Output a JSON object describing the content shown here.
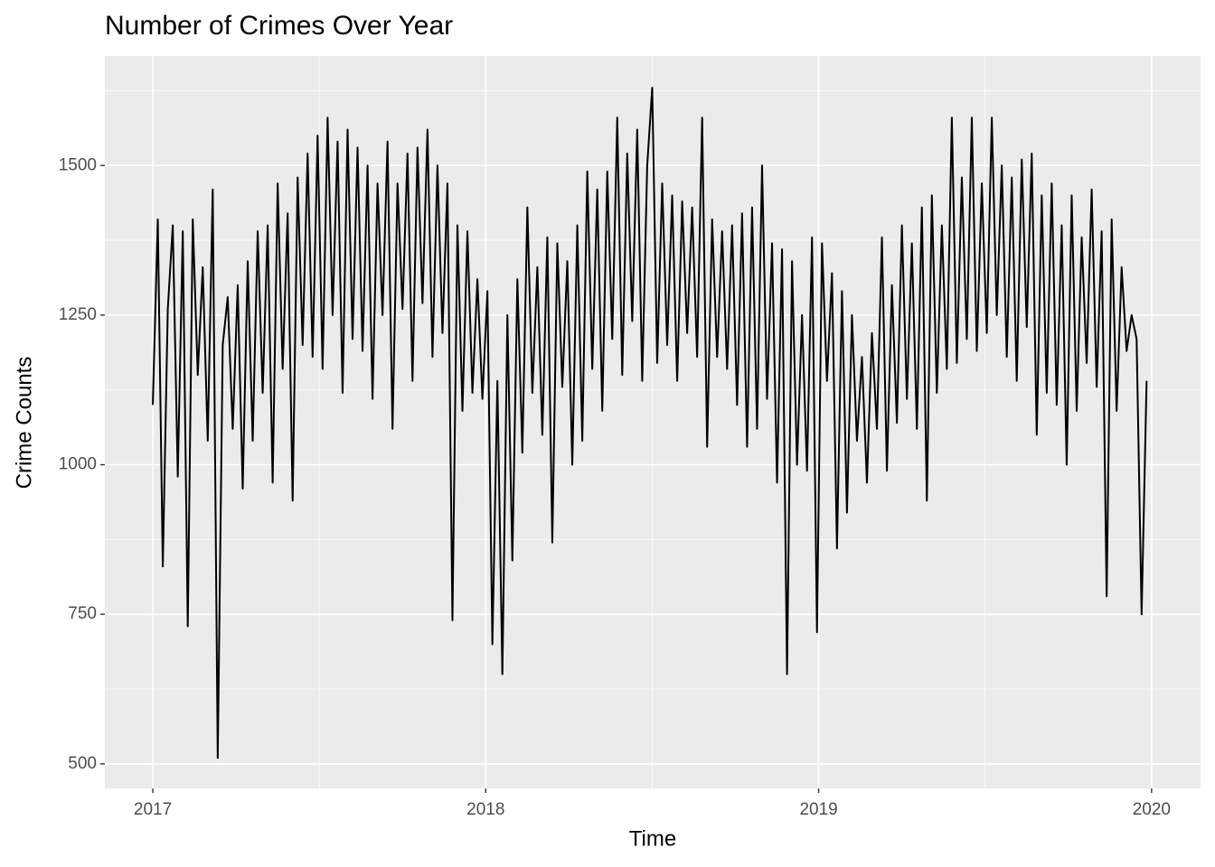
{
  "chart_data": {
    "type": "line",
    "title": "Number of Crimes Over Year",
    "xlabel": "Time",
    "ylabel": "Crime Counts",
    "x": [
      2017,
      2017.015,
      2017.03,
      2017.045,
      2017.06,
      2017.075,
      2017.09,
      2017.105,
      2017.12,
      2017.135,
      2017.15,
      2017.165,
      2017.18,
      2017.195,
      2017.21,
      2017.225,
      2017.24,
      2017.255,
      2017.27,
      2017.285,
      2017.3,
      2017.315,
      2017.33,
      2017.345,
      2017.36,
      2017.375,
      2017.39,
      2017.405,
      2017.42,
      2017.435,
      2017.45,
      2017.465,
      2017.48,
      2017.495,
      2017.51,
      2017.525,
      2017.54,
      2017.555,
      2017.57,
      2017.585,
      2017.6,
      2017.615,
      2017.63,
      2017.645,
      2017.66,
      2017.675,
      2017.69,
      2017.705,
      2017.72,
      2017.735,
      2017.75,
      2017.765,
      2017.78,
      2017.795,
      2017.81,
      2017.825,
      2017.84,
      2017.855,
      2017.87,
      2017.885,
      2017.9,
      2017.915,
      2017.93,
      2017.945,
      2017.96,
      2017.975,
      2017.99,
      2018.005,
      2018.02,
      2018.035,
      2018.05,
      2018.065,
      2018.08,
      2018.095,
      2018.11,
      2018.125,
      2018.14,
      2018.155,
      2018.17,
      2018.185,
      2018.2,
      2018.215,
      2018.23,
      2018.245,
      2018.26,
      2018.275,
      2018.29,
      2018.305,
      2018.32,
      2018.335,
      2018.35,
      2018.365,
      2018.38,
      2018.395,
      2018.41,
      2018.425,
      2018.44,
      2018.455,
      2018.47,
      2018.485,
      2018.5,
      2018.515,
      2018.53,
      2018.545,
      2018.56,
      2018.575,
      2018.59,
      2018.605,
      2018.62,
      2018.635,
      2018.65,
      2018.665,
      2018.68,
      2018.695,
      2018.71,
      2018.725,
      2018.74,
      2018.755,
      2018.77,
      2018.785,
      2018.8,
      2018.815,
      2018.83,
      2018.845,
      2018.86,
      2018.875,
      2018.89,
      2018.905,
      2018.92,
      2018.935,
      2018.95,
      2018.965,
      2018.98,
      2018.995,
      2019.01,
      2019.025,
      2019.04,
      2019.055,
      2019.07,
      2019.085,
      2019.1,
      2019.115,
      2019.13,
      2019.145,
      2019.16,
      2019.175,
      2019.19,
      2019.205,
      2019.22,
      2019.235,
      2019.25,
      2019.265,
      2019.28,
      2019.295,
      2019.31,
      2019.325,
      2019.34,
      2019.355,
      2019.37,
      2019.385,
      2019.4,
      2019.415,
      2019.43,
      2019.445,
      2019.46,
      2019.475,
      2019.49,
      2019.505,
      2019.52,
      2019.535,
      2019.55,
      2019.565,
      2019.58,
      2019.595,
      2019.61,
      2019.625,
      2019.64,
      2019.655,
      2019.67,
      2019.685,
      2019.7,
      2019.715,
      2019.73,
      2019.745,
      2019.76,
      2019.775,
      2019.79,
      2019.805,
      2019.82,
      2019.835,
      2019.85,
      2019.865,
      2019.88,
      2019.895,
      2019.91,
      2019.925,
      2019.94,
      2019.955,
      2019.97,
      2019.985
    ],
    "values": [
      1100,
      1410,
      830,
      1260,
      1400,
      980,
      1390,
      730,
      1410,
      1150,
      1330,
      1040,
      1460,
      510,
      1200,
      1280,
      1060,
      1300,
      960,
      1340,
      1040,
      1390,
      1120,
      1400,
      970,
      1470,
      1160,
      1420,
      940,
      1480,
      1200,
      1520,
      1180,
      1550,
      1160,
      1580,
      1250,
      1540,
      1120,
      1560,
      1210,
      1530,
      1190,
      1500,
      1110,
      1470,
      1250,
      1540,
      1060,
      1470,
      1260,
      1520,
      1140,
      1530,
      1270,
      1560,
      1180,
      1500,
      1220,
      1470,
      740,
      1400,
      1090,
      1390,
      1120,
      1310,
      1110,
      1290,
      700,
      1140,
      650,
      1250,
      840,
      1310,
      1020,
      1430,
      1120,
      1330,
      1050,
      1380,
      870,
      1370,
      1130,
      1340,
      1000,
      1400,
      1040,
      1490,
      1160,
      1460,
      1090,
      1490,
      1210,
      1580,
      1150,
      1520,
      1240,
      1560,
      1140,
      1500,
      1630,
      1170,
      1470,
      1200,
      1450,
      1140,
      1440,
      1220,
      1430,
      1180,
      1580,
      1030,
      1410,
      1180,
      1390,
      1160,
      1400,
      1100,
      1420,
      1030,
      1430,
      1060,
      1500,
      1110,
      1370,
      970,
      1360,
      650,
      1340,
      1000,
      1250,
      990,
      1380,
      720,
      1370,
      1140,
      1320,
      860,
      1290,
      920,
      1250,
      1040,
      1180,
      970,
      1220,
      1060,
      1380,
      990,
      1300,
      1070,
      1400,
      1110,
      1370,
      1060,
      1430,
      940,
      1450,
      1120,
      1400,
      1160,
      1580,
      1170,
      1480,
      1210,
      1580,
      1190,
      1470,
      1220,
      1580,
      1250,
      1500,
      1180,
      1480,
      1140,
      1510,
      1230,
      1520,
      1050,
      1450,
      1120,
      1470,
      1100,
      1400,
      1000,
      1450,
      1090,
      1380,
      1170,
      1460,
      1130,
      1390,
      780,
      1410,
      1090,
      1330,
      1190,
      1250,
      1210,
      750,
      1140
    ],
    "color": "#000000",
    "xlim": [
      2016.856,
      2020.147
    ],
    "xticks": [
      2017,
      2018,
      2019,
      2020
    ],
    "ylim": [
      459,
      1683
    ],
    "yticks": [
      500,
      750,
      1000,
      1250,
      1500
    ],
    "grid": true
  }
}
